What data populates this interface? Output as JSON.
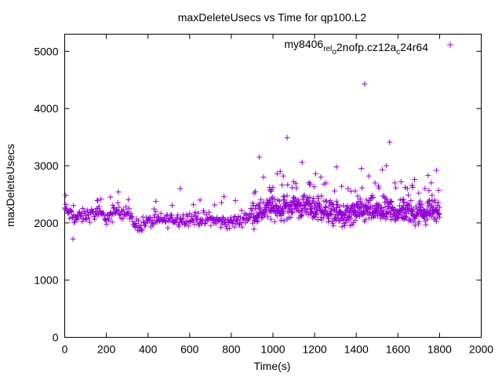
{
  "chart_data": {
    "type": "scatter",
    "title": "maxDeleteUsecs vs Time for qp100.L2",
    "xlabel": "Time(s)",
    "ylabel": "maxDeleteUsecs",
    "xlim": [
      0,
      2000
    ],
    "ylim": [
      0,
      5300
    ],
    "xticks": [
      "0",
      "200",
      "400",
      "600",
      "800",
      "1000",
      "1200",
      "1400",
      "1600",
      "1800",
      "2000"
    ],
    "xtick_values": [
      0,
      200,
      400,
      600,
      800,
      1000,
      1200,
      1400,
      1600,
      1800,
      2000
    ],
    "yticks": [
      "0",
      "1000",
      "2000",
      "3000",
      "4000",
      "5000"
    ],
    "ytick_values": [
      0,
      1000,
      2000,
      3000,
      4000,
      5000
    ],
    "grid": false,
    "legend_position": "top-right",
    "series": [
      {
        "name": "my8406_rel_o2nofp.cz12a_c24r64",
        "legend_text": {
          "base1": "my8406",
          "sub1": "rel",
          "base2": "",
          "sub2": "o",
          "base3": "2nofp.cz12a",
          "sub3": "c",
          "base4": "24r64"
        },
        "color": "#9400d3",
        "marker": "plus",
        "baseline": [
          [
            0,
            2250
          ],
          [
            25,
            2150
          ],
          [
            50,
            2080
          ],
          [
            100,
            2130
          ],
          [
            150,
            2170
          ],
          [
            200,
            2100
          ],
          [
            225,
            2110
          ],
          [
            250,
            2230
          ],
          [
            280,
            2210
          ],
          [
            300,
            2180
          ],
          [
            330,
            2010
          ],
          [
            350,
            1960
          ],
          [
            400,
            2020
          ],
          [
            500,
            2060
          ],
          [
            600,
            2080
          ],
          [
            700,
            2060
          ],
          [
            750,
            2020
          ],
          [
            800,
            2000
          ],
          [
            850,
            2080
          ],
          [
            900,
            2150
          ],
          [
            950,
            2230
          ],
          [
            1000,
            2250
          ],
          [
            1050,
            2250
          ],
          [
            1100,
            2300
          ],
          [
            1150,
            2300
          ],
          [
            1200,
            2260
          ],
          [
            1250,
            2220
          ],
          [
            1300,
            2160
          ],
          [
            1350,
            2130
          ],
          [
            1400,
            2170
          ],
          [
            1450,
            2230
          ],
          [
            1500,
            2220
          ],
          [
            1550,
            2230
          ],
          [
            1600,
            2200
          ],
          [
            1650,
            2180
          ],
          [
            1700,
            2170
          ],
          [
            1750,
            2200
          ],
          [
            1800,
            2220
          ]
        ],
        "outliers": [
          [
            5,
            2480
          ],
          [
            40,
            1720
          ],
          [
            220,
            2450
          ],
          [
            555,
            2600
          ],
          [
            650,
            2400
          ],
          [
            765,
            2460
          ],
          [
            820,
            2390
          ],
          [
            910,
            2520
          ],
          [
            935,
            3150
          ],
          [
            955,
            2800
          ],
          [
            985,
            2580
          ],
          [
            1000,
            2620
          ],
          [
            1020,
            2860
          ],
          [
            1035,
            2900
          ],
          [
            1050,
            2820
          ],
          [
            1068,
            3490
          ],
          [
            1100,
            2720
          ],
          [
            1140,
            3060
          ],
          [
            1175,
            2680
          ],
          [
            1205,
            2860
          ],
          [
            1230,
            2800
          ],
          [
            1255,
            2700
          ],
          [
            1305,
            2980
          ],
          [
            1330,
            2640
          ],
          [
            1360,
            2600
          ],
          [
            1395,
            2560
          ],
          [
            1425,
            2950
          ],
          [
            1440,
            4430
          ],
          [
            1460,
            2820
          ],
          [
            1490,
            2700
          ],
          [
            1525,
            2930
          ],
          [
            1545,
            3000
          ],
          [
            1560,
            3410
          ],
          [
            1585,
            2700
          ],
          [
            1615,
            2720
          ],
          [
            1645,
            2600
          ],
          [
            1680,
            2760
          ],
          [
            1700,
            2520
          ],
          [
            1730,
            2600
          ],
          [
            1745,
            2830
          ],
          [
            1760,
            2700
          ],
          [
            1785,
            2920
          ],
          [
            1795,
            2570
          ]
        ]
      }
    ]
  }
}
